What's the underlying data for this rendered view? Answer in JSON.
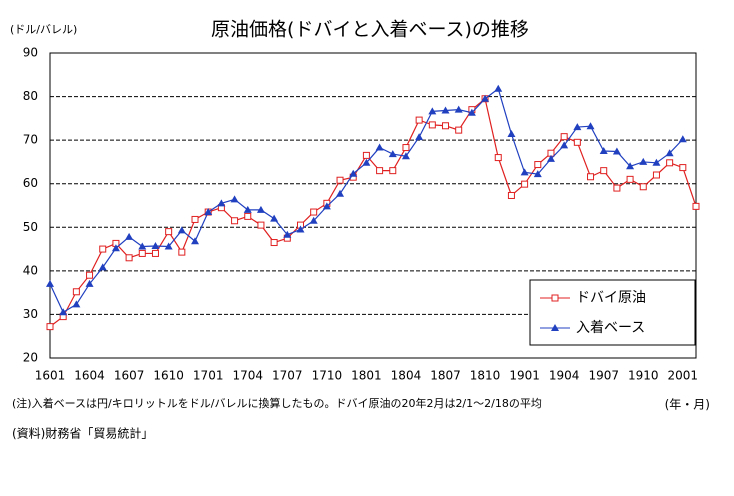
{
  "chart_data": {
    "type": "line",
    "title": "原油価格(ドバイと入着ベース)の推移",
    "y_label": "(ドル/バレル)",
    "x_label": "(年・月)",
    "notes": [
      "(注)入着ベースは円/キロリットルをドル/バレルに換算したもの。ドバイ原油の20年2月は2/1～2/18の平均",
      "(資料)財務省「貿易統計」"
    ],
    "categories": [
      "1601",
      null,
      null,
      "1604",
      null,
      null,
      "1607",
      null,
      null,
      "1610",
      null,
      null,
      "1701",
      null,
      null,
      "1704",
      null,
      null,
      "1707",
      null,
      null,
      "1710",
      null,
      null,
      "1801",
      null,
      null,
      "1804",
      null,
      null,
      "1807",
      null,
      null,
      "1810",
      null,
      null,
      "1901",
      null,
      null,
      "1904",
      null,
      null,
      "1907",
      null,
      null,
      "1910",
      null,
      null,
      "2001",
      null
    ],
    "series": [
      {
        "name": "ドバイ原油",
        "color": "#e02020",
        "marker": "square",
        "values": [
          27.2,
          29.5,
          35.2,
          39,
          45,
          46.3,
          43,
          44,
          44,
          49,
          44.3,
          51.8,
          53.5,
          54.5,
          51.5,
          52.5,
          50.5,
          46.5,
          47.5,
          50.5,
          53.5,
          55.5,
          60.8,
          61.5,
          66.5,
          63,
          63,
          68.3,
          74.6,
          73.5,
          73.3,
          72.3,
          77,
          79.5,
          66,
          57.3,
          59.9,
          64.4,
          67,
          70.8,
          69.5,
          61.6,
          63,
          59,
          61,
          59.3,
          62,
          64.8,
          63.7,
          54.8
        ]
      },
      {
        "name": "入着ベース",
        "color": "#2040c0",
        "marker": "triangle",
        "values": [
          37,
          30.5,
          32.3,
          37,
          40.8,
          45.2,
          47.8,
          45.6,
          45.7,
          45.6,
          49.3,
          46.8,
          53.5,
          55.5,
          56.4,
          54,
          54,
          52,
          48.3,
          49.5,
          51.5,
          54.8,
          57.7,
          62.3,
          64.8,
          68.3,
          66.8,
          66.3,
          70.7,
          76.6,
          76.8,
          77,
          76.3,
          79.5,
          81.8,
          71.4,
          62.6,
          62.2,
          65.7,
          68.8,
          73,
          73.2,
          67.5,
          67.4,
          64,
          65,
          64.8,
          67,
          70.2,
          null
        ]
      }
    ],
    "ylim": [
      20,
      90
    ],
    "yticks": [
      20,
      30,
      40,
      50,
      60,
      70,
      80,
      90
    ],
    "grid": true,
    "legend": "lower right"
  }
}
